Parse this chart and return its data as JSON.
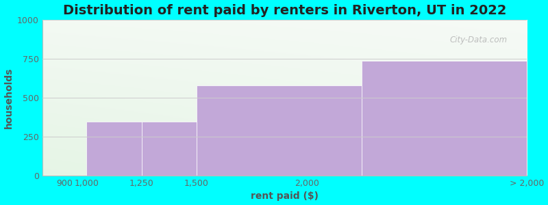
{
  "title": "Distribution of rent paid by renters in Riverton, UT in 2022",
  "xlabel": "rent paid ($)",
  "ylabel": "households",
  "bin_edges": [
    800,
    1000,
    1250,
    1500,
    2250,
    3000
  ],
  "tick_positions": [
    900,
    1000,
    1250,
    1500,
    2000,
    3000
  ],
  "tick_labels": [
    "900",
    "1,000",
    "1,250",
    "1,500",
    "2,000",
    "> 2,000"
  ],
  "values": [
    0,
    345,
    345,
    580,
    735
  ],
  "bar_color": "#c2a8d8",
  "ylim": [
    0,
    1000
  ],
  "yticks": [
    0,
    250,
    500,
    750,
    1000
  ],
  "background_color": "#00ffff",
  "plot_bg_color": "#e8f5e4",
  "title_fontsize": 14,
  "axis_label_fontsize": 10,
  "tick_fontsize": 9,
  "title_color": "#222222",
  "axis_label_color": "#555555",
  "tick_color": "#666666",
  "grid_color": "#cccccc",
  "watermark_text": "City-Data.com"
}
